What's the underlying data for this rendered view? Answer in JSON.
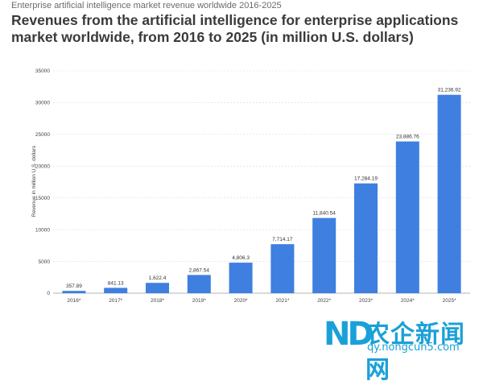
{
  "header": {
    "subtitle": "Enterprise artificial intelligence market revenue worldwide 2016-2025",
    "title": "Revenues from the artificial intelligence for enterprise applications market worldwide, from 2016 to 2025 (in million U.S. dollars)"
  },
  "chart_data": {
    "type": "bar",
    "title": "Revenues from the artificial intelligence for enterprise applications market worldwide, from 2016 to 2025 (in million U.S. dollars)",
    "ylabel": "Revenue in million U.S. dollars",
    "xlabel": "",
    "ylim": [
      0,
      35000
    ],
    "yticks": [
      0,
      5000,
      10000,
      15000,
      20000,
      25000,
      30000,
      35000
    ],
    "grid": true,
    "bar_color": "#3e7fe0",
    "categories": [
      "2016*",
      "2017*",
      "2018*",
      "2019*",
      "2020*",
      "2021*",
      "2022*",
      "2023*",
      "2024*",
      "2025*"
    ],
    "values": [
      357.89,
      841.13,
      1622.4,
      2867.54,
      4806.3,
      7714.17,
      11840.54,
      17284.19,
      23886.76,
      31236.92
    ],
    "value_labels": [
      "357.89",
      "841.13",
      "1,622.4",
      "2,867.54",
      "4,806.3",
      "7,714.17",
      "11,840.54",
      "17,284.19",
      "23,886.76",
      "31,236.92"
    ]
  },
  "watermark": {
    "logo": "ND",
    "text": "农企新闻网",
    "url": "qy.nongcun5.com"
  }
}
